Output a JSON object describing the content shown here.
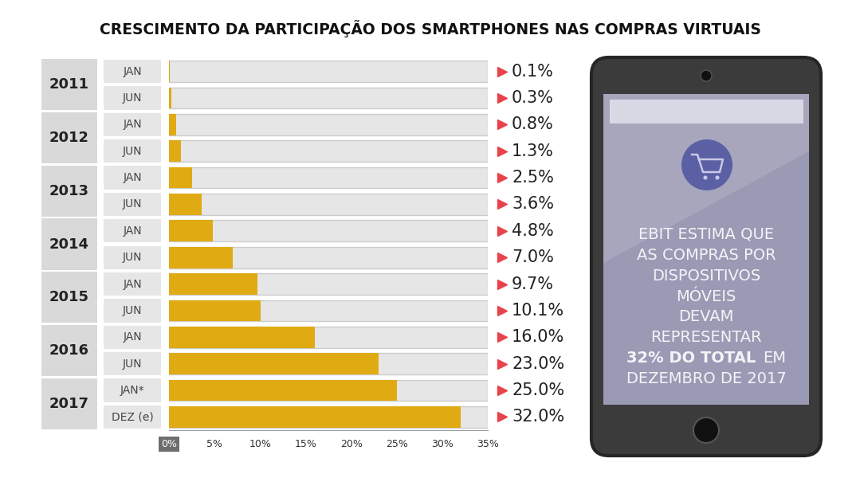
{
  "chart_data": {
    "type": "bar",
    "orientation": "horizontal",
    "title": "CRESCIMENTO DA PARTICIPAÇÃO DOS SMARTPHONES NAS COMPRAS VIRTUAIS",
    "categories": [
      "JAN",
      "JUN",
      "JAN",
      "JUN",
      "JAN",
      "JUN",
      "JAN",
      "JUN",
      "JAN",
      "JUN",
      "JAN",
      "JUN",
      "JAN*",
      "DEZ (e)"
    ],
    "groups": [
      "2011",
      "2011",
      "2012",
      "2012",
      "2013",
      "2013",
      "2014",
      "2014",
      "2015",
      "2015",
      "2016",
      "2016",
      "2017",
      "2017"
    ],
    "values": [
      0.1,
      0.3,
      0.8,
      1.3,
      2.5,
      3.6,
      4.8,
      7.0,
      9.7,
      10.1,
      16.0,
      23.0,
      25.0,
      32.0
    ],
    "value_labels": [
      "0.1%",
      "0.3%",
      "0.8%",
      "1.3%",
      "2.5%",
      "3.6%",
      "4.8%",
      "7.0%",
      "9.7%",
      "10.1%",
      "16.0%",
      "23.0%",
      "25.0%",
      "32.0%"
    ],
    "data_labels": true,
    "color": "#e0aa12",
    "grid": false,
    "xlim": [
      0,
      35
    ],
    "xticks": [
      {
        "value": 0,
        "label": "0%"
      },
      {
        "value": 5,
        "label": "5%"
      },
      {
        "value": 10,
        "label": "10%"
      },
      {
        "value": 15,
        "label": "15%"
      },
      {
        "value": 20,
        "label": "20%"
      },
      {
        "value": 25,
        "label": "25%"
      },
      {
        "value": 30,
        "label": "30%"
      },
      {
        "value": 35,
        "label": "35%"
      }
    ],
    "annotation": {
      "lines": [
        "EBIT ESTIMA QUE",
        "AS COMPRAS POR",
        "DISPOSITIVOS",
        "MÓVEIS",
        "DEVAM",
        "REPRESENTAR",
        "32% DO TOTAL EM",
        "DEZEMBRO DE 2017"
      ],
      "emphasis": "32% DO TOTAL"
    }
  }
}
